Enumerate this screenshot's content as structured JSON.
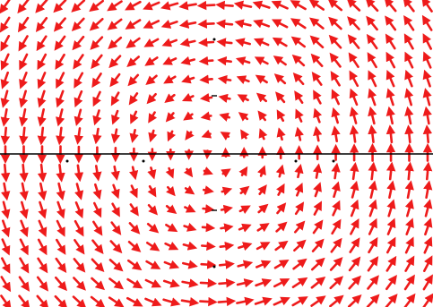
{
  "figure": {
    "kind": "vector-field",
    "description_free": true,
    "field": {
      "expression_shown": false,
      "rotation": "counterclockwise",
      "x_range": [
        -3,
        3
      ],
      "y_range": [
        -2,
        2
      ],
      "grid": {
        "cols": 24,
        "rows": 17
      }
    },
    "axes": {
      "x_axis_visible": true,
      "y_axis_visible": false,
      "x_ticks": [
        -2,
        -1,
        1,
        2
      ],
      "y_ticks": [
        -1,
        1
      ]
    },
    "colors": {
      "arrow": "#ee1b1b",
      "axis": "#000000",
      "background": "#ffffff"
    }
  }
}
